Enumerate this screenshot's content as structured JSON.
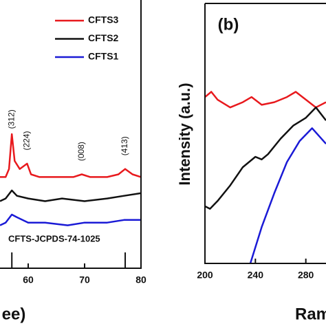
{
  "chart_data": [
    {
      "type": "line",
      "x_label": "ee)",
      "xlim": [
        55,
        80
      ],
      "xticks": [
        60,
        70,
        80
      ],
      "ylim": [
        0,
        100
      ],
      "legend": "upper right",
      "series": [
        {
          "name": "CFTS3",
          "color": "#e8191d",
          "x": [
            55,
            56,
            56.6,
            57.1,
            57.6,
            58.5,
            59.8,
            60.5,
            62,
            65,
            68,
            69.5,
            71,
            74,
            76,
            77.2,
            78.5,
            80
          ],
          "values": [
            34,
            34,
            37,
            50,
            40,
            37,
            39,
            35,
            34,
            34,
            34,
            35,
            34,
            34,
            35,
            37,
            35,
            34
          ]
        },
        {
          "name": "CFTS2",
          "color": "#111111",
          "x": [
            55,
            56,
            57.1,
            58,
            60,
            63,
            66,
            70,
            74,
            77,
            80
          ],
          "values": [
            25,
            26,
            29,
            27,
            26,
            25,
            26,
            25,
            26,
            27,
            28
          ]
        },
        {
          "name": "CFTS1",
          "color": "#1a1ad6",
          "x": [
            55,
            56,
            57.1,
            58,
            60,
            63,
            67,
            70,
            74,
            77,
            80
          ],
          "values": [
            16,
            17,
            20,
            19,
            17,
            17,
            16,
            17,
            17,
            18,
            18
          ]
        }
      ],
      "annotations": [
        {
          "text": "(312)",
          "x": 57.1,
          "y": 53
        },
        {
          "text": "(224)",
          "x": 59.8,
          "y": 45
        },
        {
          "text": "(008)",
          "x": 69.5,
          "y": 41
        },
        {
          "text": "(413)",
          "x": 77.2,
          "y": 43
        }
      ],
      "reference": {
        "label": "CFTS-JCPDS-74-1025",
        "x": [
          57.1,
          77.2
        ]
      }
    },
    {
      "type": "line",
      "title": "(b)",
      "y_label": "Intensity (a.u.)",
      "x_label": "Ram",
      "xlim": [
        200,
        296
      ],
      "xticks": [
        200,
        240,
        280
      ],
      "ylim": [
        0,
        100
      ],
      "series": [
        {
          "name": "CFTS3",
          "color": "#e8191d",
          "x": [
            200,
            205,
            210,
            220,
            230,
            237,
            245,
            255,
            265,
            272,
            280,
            288,
            296
          ],
          "values": [
            64,
            66,
            63,
            60,
            62,
            64,
            61,
            62,
            64,
            66,
            63,
            60,
            62
          ]
        },
        {
          "name": "CFTS2",
          "color": "#111111",
          "x": [
            200,
            204,
            210,
            220,
            230,
            240,
            245,
            250,
            260,
            270,
            280,
            288,
            296
          ],
          "values": [
            22,
            21,
            24,
            30,
            37,
            41,
            40,
            42,
            48,
            53,
            56,
            60,
            55
          ]
        },
        {
          "name": "CFTS1",
          "color": "#1a1ad6",
          "x": [
            236,
            245,
            255,
            265,
            275,
            285,
            296
          ],
          "values": [
            0,
            14,
            27,
            39,
            47,
            52,
            46
          ]
        }
      ]
    }
  ]
}
